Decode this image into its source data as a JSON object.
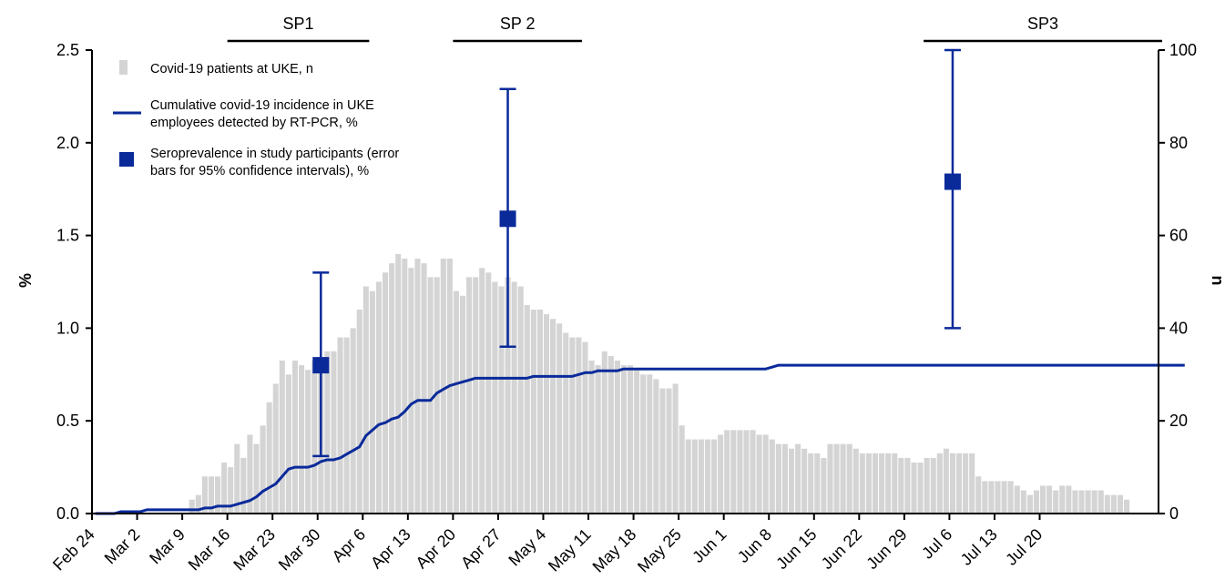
{
  "chart_data": {
    "type": "bar+line",
    "x_tick_labels": [
      "Feb 24",
      "Mar 2",
      "Mar 9",
      "Mar 16",
      "Mar 23",
      "Mar 30",
      "Apr 6",
      "Apr 13",
      "Apr 20",
      "Apr 27",
      "May 4",
      "May 11",
      "May 18",
      "May 25",
      "Jun 1",
      "Jun 8",
      "Jun 15",
      "Jun 22",
      "Jun 29",
      "Jul 6",
      "Jul 13",
      "Jul 20"
    ],
    "left_axis": {
      "label": "%",
      "ylim": [
        0,
        2.5
      ],
      "ticks": [
        "0.0",
        "0.5",
        "1.0",
        "1.5",
        "2.0",
        "2.5"
      ]
    },
    "right_axis": {
      "label": "n",
      "ylim": [
        0,
        100
      ],
      "ticks": [
        "0",
        "20",
        "40",
        "60",
        "80",
        "100"
      ]
    },
    "legend": {
      "bars": "Covid-19 patients at UKE, n",
      "line": [
        "Cumulative covid-19 incidence in UKE",
        "employees detected by RT-PCR, %"
      ],
      "points": [
        "Seroprevalence in study participants (error",
        "bars for 95% confidence intervals), %"
      ]
    },
    "colors": {
      "bars": "#d4d4d4",
      "line": "#0a2a9a",
      "points": "#0a2a9a"
    },
    "study_periods": [
      {
        "label": "SP1",
        "start_day": 21,
        "end_day": 43
      },
      {
        "label": "SP 2",
        "start_day": 56,
        "end_day": 76
      },
      {
        "label": "SP3",
        "start_day": 129,
        "end_day": 166
      }
    ],
    "bars_day0": 1,
    "bars_patients_n": [
      0,
      0,
      0,
      0,
      0,
      0,
      0,
      0,
      0,
      0,
      0,
      0,
      0,
      0,
      3,
      4,
      8,
      8,
      8,
      11,
      10,
      15,
      12,
      17,
      15,
      19,
      24,
      28,
      33,
      30,
      33,
      32,
      31,
      33,
      33,
      35,
      35,
      38,
      38,
      40,
      44,
      49,
      48,
      50,
      52,
      54,
      56,
      55,
      53,
      55,
      54,
      51,
      51,
      55,
      55,
      48,
      47,
      51,
      51,
      53,
      52,
      50,
      49,
      51,
      50,
      49,
      45,
      44,
      44,
      43,
      42,
      41,
      39,
      38,
      38,
      37,
      33,
      32,
      35,
      34,
      33,
      32,
      32,
      31,
      30,
      30,
      29,
      27,
      27,
      28,
      19,
      16,
      16,
      16,
      16,
      16,
      17,
      18,
      18,
      18,
      18,
      18,
      17,
      17,
      16,
      15,
      15,
      14,
      15,
      14,
      13,
      13,
      12,
      15,
      15,
      15,
      15,
      14,
      13,
      13,
      13,
      13,
      13,
      13,
      12,
      12,
      11,
      11,
      12,
      12,
      13,
      14,
      13,
      13,
      13,
      13,
      8,
      7,
      7,
      7,
      7,
      7,
      6,
      5,
      4,
      5,
      6,
      6,
      5,
      6,
      6,
      5,
      5,
      5,
      5,
      5,
      4,
      4,
      4,
      3
    ],
    "line_day0": 0,
    "line_cumulative_pct": [
      0.0,
      0.0,
      0.0,
      0.0,
      0.01,
      0.01,
      0.01,
      0.01,
      0.02,
      0.02,
      0.02,
      0.02,
      0.02,
      0.02,
      0.02,
      0.02,
      0.02,
      0.03,
      0.03,
      0.04,
      0.04,
      0.04,
      0.05,
      0.06,
      0.07,
      0.09,
      0.12,
      0.14,
      0.16,
      0.2,
      0.24,
      0.25,
      0.25,
      0.25,
      0.26,
      0.28,
      0.29,
      0.29,
      0.3,
      0.32,
      0.34,
      0.36,
      0.42,
      0.45,
      0.48,
      0.49,
      0.51,
      0.52,
      0.55,
      0.59,
      0.61,
      0.61,
      0.61,
      0.65,
      0.67,
      0.69,
      0.7,
      0.71,
      0.72,
      0.73,
      0.73,
      0.73,
      0.73,
      0.73,
      0.73,
      0.73,
      0.73,
      0.73,
      0.74,
      0.74,
      0.74,
      0.74,
      0.74,
      0.74,
      0.74,
      0.75,
      0.76,
      0.76,
      0.77,
      0.77,
      0.77,
      0.77,
      0.78,
      0.78,
      0.78,
      0.78,
      0.78,
      0.78,
      0.78,
      0.78,
      0.78,
      0.78,
      0.78,
      0.78,
      0.78,
      0.78,
      0.78,
      0.78,
      0.78,
      0.78,
      0.78,
      0.78,
      0.78,
      0.78,
      0.78,
      0.79,
      0.8,
      0.8,
      0.8,
      0.8,
      0.8,
      0.8,
      0.8,
      0.8,
      0.8,
      0.8,
      0.8,
      0.8,
      0.8,
      0.8,
      0.8,
      0.8,
      0.8,
      0.8,
      0.8,
      0.8,
      0.8,
      0.8,
      0.8,
      0.8,
      0.8,
      0.8,
      0.8,
      0.8,
      0.8,
      0.8,
      0.8,
      0.8,
      0.8,
      0.8,
      0.8,
      0.8,
      0.8,
      0.8,
      0.8,
      0.8,
      0.8,
      0.8,
      0.8,
      0.8,
      0.8,
      0.8,
      0.8,
      0.8,
      0.8,
      0.8,
      0.8,
      0.8,
      0.8,
      0.8,
      0.8,
      0.8,
      0.8,
      0.8,
      0.8,
      0.8,
      0.8,
      0.8,
      0.8,
      0.8
    ],
    "seroprevalence": [
      {
        "day": 35,
        "value": 0.8,
        "ci_low": 0.31,
        "ci_high": 1.3
      },
      {
        "day": 64,
        "value": 1.59,
        "ci_low": 0.9,
        "ci_high": 2.29
      },
      {
        "day": 133,
        "value": 1.79,
        "ci_low": 1.0,
        "ci_high": 2.5
      }
    ],
    "x_range_days": [
      0,
      165
    ]
  }
}
